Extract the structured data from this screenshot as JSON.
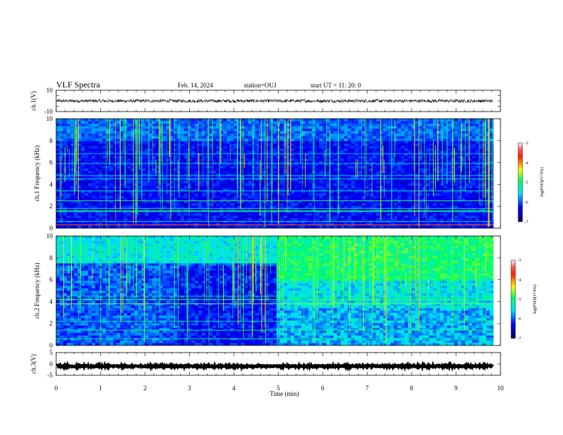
{
  "header": {
    "title": "VLF Spectra",
    "date": "Feb. 14, 2024",
    "station": "station=OUJ",
    "start": "start UT = 11: 20: 0"
  },
  "colors": {
    "background": "#ffffff",
    "axis": "#000000",
    "spectrogram_floor": "#00005a"
  },
  "chart_data": [
    {
      "type": "line",
      "panel": "ch1-waveform",
      "ylabel": "ch.1(V)",
      "yticklabels": [
        "10",
        "-10"
      ],
      "ylim": [
        -10,
        10
      ],
      "xlim": [
        0,
        10
      ],
      "signal_center": 0,
      "signal_amplitude": 1.5,
      "data_end_min": 9.83
    },
    {
      "type": "heatmap",
      "panel": "ch1-spectrogram",
      "ylabel": "ch.1 Frequency (kHz)",
      "yticklabels": [
        "0",
        "2",
        "4",
        "6",
        "8",
        "10"
      ],
      "ylim": [
        0,
        10
      ],
      "xlim": [
        0,
        10
      ],
      "data_end_min": 9.83,
      "colorbar": {
        "label": "log(PSD)(V²/Hz)",
        "ticklabels": [
          "-3",
          "-4",
          "-5",
          "-6",
          "-7"
        ],
        "range": [
          -7,
          -3
        ]
      }
    },
    {
      "type": "heatmap",
      "panel": "ch2-spectrogram",
      "ylabel": "ch.2 Frequency (kHz)",
      "yticklabels": [
        "0",
        "2",
        "4",
        "6",
        "8",
        "10"
      ],
      "ylim": [
        0,
        10
      ],
      "xlim": [
        0,
        10
      ],
      "data_end_min": 9.83,
      "colorbar": {
        "label": "log(PSD)(V²/Hz)",
        "ticklabels": [
          "-3",
          "-4",
          "-5",
          "-6",
          "-7"
        ],
        "range": [
          -7,
          -3
        ]
      }
    },
    {
      "type": "line",
      "panel": "ch3-waveform",
      "ylabel": "ch.3(V)",
      "yticklabels": [
        "5",
        "0",
        "-5"
      ],
      "ylim": [
        -5,
        5
      ],
      "xlim": [
        0,
        10
      ],
      "signal_center": -1,
      "signal_amplitude": 0.3,
      "data_end_min": 9.83,
      "xlabel": "Time (min)",
      "xticklabels": [
        "0",
        "1",
        "2",
        "3",
        "4",
        "5",
        "6",
        "7",
        "8",
        "9",
        "10"
      ]
    }
  ]
}
